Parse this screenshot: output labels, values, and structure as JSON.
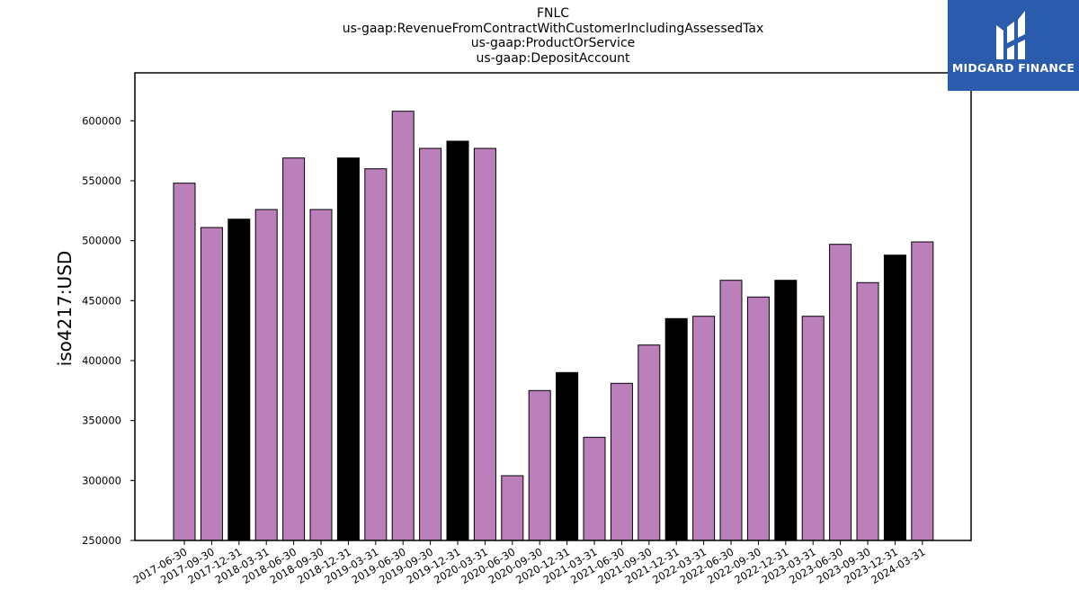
{
  "header": {
    "title_lines": [
      "FNLC",
      "us-gaap:RevenueFromContractWithCustomerIncludingAssessedTax",
      "us-gaap:ProductOrService",
      "us-gaap:DepositAccount"
    ]
  },
  "logo": {
    "text": "MIDGARD FINANCE",
    "background": "#2b5bad"
  },
  "chart_data": {
    "type": "bar",
    "title": "FNLC\nus-gaap:RevenueFromContractWithCustomerIncludingAssessedTax\nus-gaap:ProductOrService\nus-gaap:DepositAccount",
    "xlabel": "",
    "ylabel": "iso4217:USD",
    "ylim": [
      250000,
      640000
    ],
    "yticks": [
      250000,
      300000,
      350000,
      400000,
      450000,
      500000,
      550000,
      600000
    ],
    "categories": [
      "2017-06-30",
      "2017-09-30",
      "2017-12-31",
      "2018-03-31",
      "2018-06-30",
      "2018-09-30",
      "2018-12-31",
      "2019-03-31",
      "2019-06-30",
      "2019-09-30",
      "2019-12-31",
      "2020-03-31",
      "2020-06-30",
      "2020-09-30",
      "2020-12-31",
      "2021-03-31",
      "2021-06-30",
      "2021-09-30",
      "2021-12-31",
      "2022-03-31",
      "2022-06-30",
      "2022-09-30",
      "2022-12-31",
      "2023-03-31",
      "2023-06-30",
      "2023-09-30",
      "2023-12-31",
      "2024-03-31"
    ],
    "values": [
      548000,
      511000,
      518000,
      526000,
      569000,
      526000,
      569000,
      560000,
      608000,
      577000,
      583000,
      577000,
      304000,
      375000,
      390000,
      336000,
      381000,
      413000,
      435000,
      437000,
      467000,
      453000,
      467000,
      437000,
      497000,
      465000,
      488000,
      499000
    ],
    "bar_colors": [
      "#bb80bb",
      "#bb80bb",
      "#000000",
      "#bb80bb",
      "#bb80bb",
      "#bb80bb",
      "#000000",
      "#bb80bb",
      "#bb80bb",
      "#bb80bb",
      "#000000",
      "#bb80bb",
      "#bb80bb",
      "#bb80bb",
      "#000000",
      "#bb80bb",
      "#bb80bb",
      "#bb80bb",
      "#000000",
      "#bb80bb",
      "#bb80bb",
      "#bb80bb",
      "#000000",
      "#bb80bb",
      "#bb80bb",
      "#bb80bb",
      "#000000",
      "#bb80bb"
    ],
    "grid": false,
    "legend": "none"
  }
}
